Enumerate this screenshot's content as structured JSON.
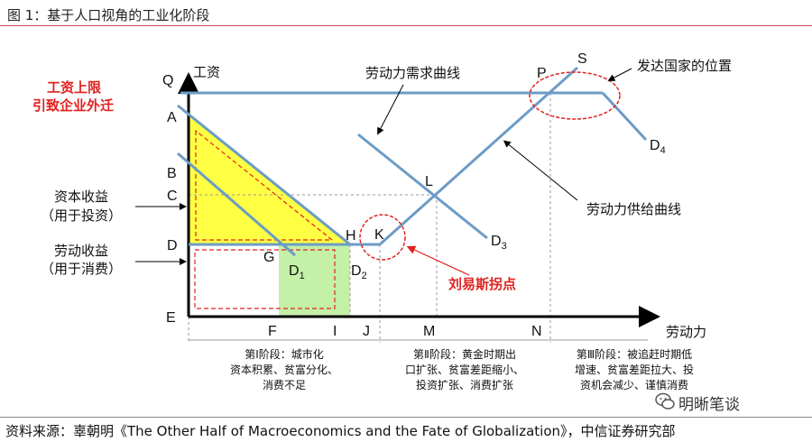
{
  "figure_title": "图 1：基于人口视角的工业化阶段",
  "source_line": "资料来源：辜朝明《The Other Half of Macroeconomics and the Fate of Globalization》，中信证券研究部",
  "watermark": "明晰笔谈",
  "axes": {
    "y_label": "工资",
    "x_label": "劳动力"
  },
  "y_ticks": {
    "Q": "Q",
    "A": "A",
    "B": "B",
    "C": "C",
    "D": "D",
    "E": "E"
  },
  "x_ticks": {
    "F": "F",
    "I": "I",
    "J": "J",
    "M": "M",
    "N": "N"
  },
  "points": {
    "G": "G",
    "H": "H",
    "K": "K",
    "L": "L",
    "P": "P",
    "S": "S",
    "D1_main": "D",
    "D1_sub": "1",
    "D2_main": "D",
    "D2_sub": "2",
    "D3_main": "D",
    "D3_sub": "3",
    "D4_main": "D",
    "D4_sub": "4"
  },
  "annotations": {
    "wage_limit_1": "工资上限",
    "wage_limit_2": "引致企业外迁",
    "capital_1": "资本收益",
    "capital_2": "（用于投资）",
    "labor_1": "劳动收益",
    "labor_2": "（用于消费）",
    "demand_curve": "劳动力需求曲线",
    "supply_curve": "劳动力供给曲线",
    "developed": "发达国家的位置",
    "lewis": "刘易斯拐点"
  },
  "stages": {
    "stage1": [
      "第Ⅰ阶段：城市化",
      "资本积累、贫富分化、",
      "消费不足"
    ],
    "stage2": [
      "第Ⅱ阶段：黄金时期出",
      "口扩张、贫富差距缩小、",
      "投资扩张、消费扩张"
    ],
    "stage3": [
      "第Ⅲ阶段：被追赶时期低",
      "增速、贫富差距拉大、投",
      "资机会减少、谨慎消费"
    ]
  },
  "colors": {
    "curve": "#6c9cc6",
    "highlight_red": "#e0221f",
    "yellow": "#ffff44",
    "green": "#c5f0a8",
    "axis": "#000000"
  }
}
